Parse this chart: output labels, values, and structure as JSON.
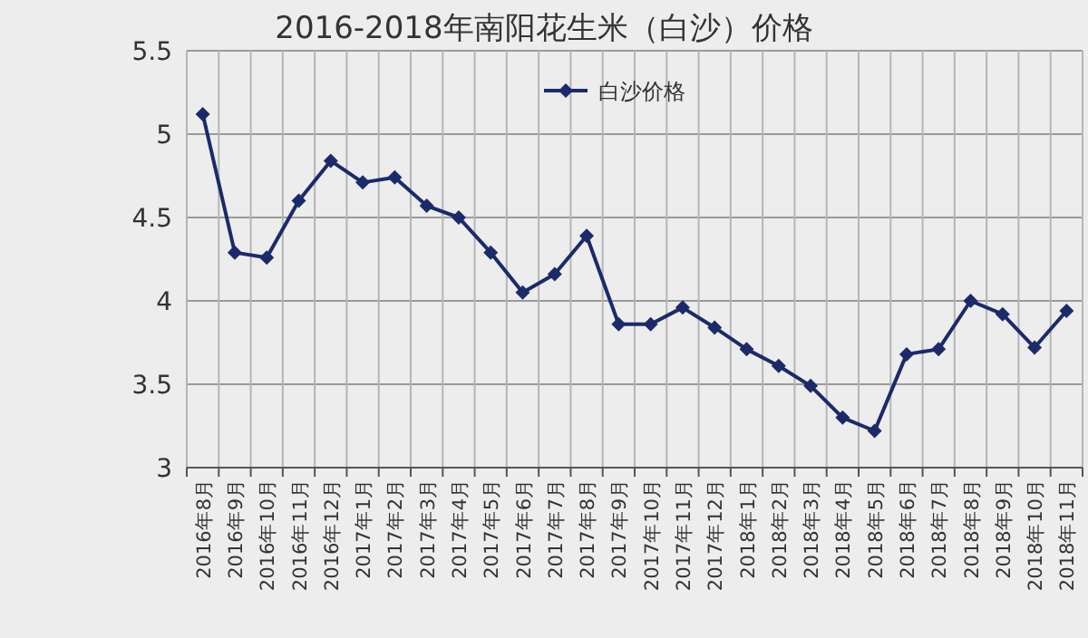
{
  "chart_data": {
    "type": "line",
    "title": "2016-2018年南阳花生米（白沙）价格",
    "categories": [
      "2016年8月",
      "2016年9月",
      "2016年10月",
      "2016年11月",
      "2016年12月",
      "2017年1月",
      "2017年2月",
      "2017年3月",
      "2017年4月",
      "2017年5月",
      "2017年6月",
      "2017年7月",
      "2017年8月",
      "2017年9月",
      "2017年10月",
      "2017年11月",
      "2017年12月",
      "2018年1月",
      "2018年2月",
      "2018年3月",
      "2018年4月",
      "2018年5月",
      "2018年6月",
      "2018年7月",
      "2018年8月",
      "2018年9月",
      "2018年10月",
      "2018年11月"
    ],
    "series": [
      {
        "name": "白沙价格",
        "color": "#1b2a6b",
        "values": [
          5.12,
          4.29,
          4.26,
          4.6,
          4.84,
          4.71,
          4.74,
          4.57,
          4.5,
          4.29,
          4.05,
          4.16,
          4.39,
          3.86,
          3.86,
          3.96,
          3.84,
          3.71,
          3.61,
          3.49,
          3.3,
          3.22,
          3.68,
          3.71,
          4.0,
          3.92,
          3.72,
          3.94
        ]
      }
    ],
    "ylim": [
      3,
      5.5
    ],
    "yticks": [
      3,
      3.5,
      4,
      4.5,
      5,
      5.5
    ],
    "grid": true,
    "legend": "top",
    "marker": "diamond",
    "line_style": "solid"
  }
}
